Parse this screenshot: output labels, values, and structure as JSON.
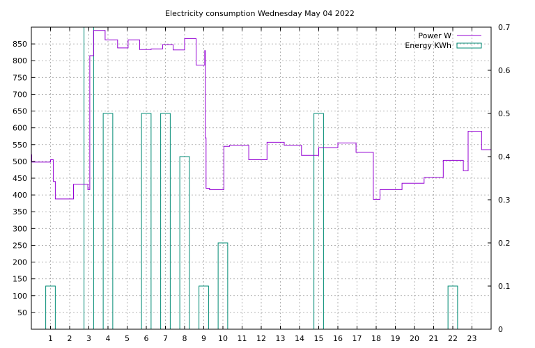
{
  "chart_data": {
    "type": "line",
    "title": "Electricity consumption Wednesday May 04 2022",
    "x_range": [
      0,
      24
    ],
    "x_ticks": [
      "1",
      "2",
      "3",
      "4",
      "5",
      "6",
      "7",
      "8",
      "9",
      "10",
      "11",
      "12",
      "13",
      "14",
      "15",
      "16",
      "17",
      "18",
      "19",
      "20",
      "21",
      "22",
      "23"
    ],
    "y_left": {
      "range": [
        0,
        900
      ],
      "ticks": [
        50,
        100,
        150,
        200,
        250,
        300,
        350,
        400,
        450,
        500,
        550,
        600,
        650,
        700,
        750,
        800,
        850
      ]
    },
    "y_right": {
      "range": [
        0,
        0.7
      ],
      "ticks": [
        "0",
        "0.1",
        "0.2",
        "0.3",
        "0.4",
        "0.5",
        "0.6",
        "0.7"
      ]
    },
    "grid": true,
    "legend_position": "top-right",
    "series": [
      {
        "name": "Power W",
        "type": "step",
        "axis": "left",
        "color": "#9400d3",
        "points": [
          [
            0.0,
            520
          ],
          [
            0.02,
            498
          ],
          [
            1.0,
            505
          ],
          [
            1.15,
            440
          ],
          [
            1.25,
            388
          ],
          [
            2.2,
            432
          ],
          [
            2.95,
            416
          ],
          [
            3.05,
            815
          ],
          [
            3.25,
            890
          ],
          [
            3.85,
            862
          ],
          [
            4.5,
            838
          ],
          [
            5.05,
            862
          ],
          [
            5.65,
            833
          ],
          [
            6.25,
            835
          ],
          [
            6.85,
            848
          ],
          [
            7.4,
            832
          ],
          [
            8.0,
            866
          ],
          [
            8.6,
            787
          ],
          [
            9.05,
            830
          ],
          [
            9.08,
            570
          ],
          [
            9.12,
            420
          ],
          [
            9.3,
            416
          ],
          [
            10.05,
            545
          ],
          [
            10.35,
            548
          ],
          [
            11.35,
            505
          ],
          [
            12.3,
            557
          ],
          [
            13.2,
            548
          ],
          [
            14.1,
            518
          ],
          [
            15.0,
            541
          ],
          [
            16.0,
            555
          ],
          [
            16.95,
            527
          ],
          [
            17.85,
            387
          ],
          [
            18.2,
            416
          ],
          [
            19.35,
            435
          ],
          [
            20.5,
            452
          ],
          [
            21.5,
            503
          ],
          [
            22.55,
            472
          ],
          [
            22.8,
            590
          ],
          [
            23.5,
            535
          ],
          [
            24.0,
            535
          ]
        ]
      },
      {
        "name": "Energy KWh",
        "type": "histogram",
        "axis": "right",
        "color": "#008b74",
        "bar_width": 0.5,
        "points": [
          [
            1,
            0.1
          ],
          [
            3,
            0.7
          ],
          [
            4,
            0.5
          ],
          [
            6,
            0.5
          ],
          [
            7,
            0.5
          ],
          [
            8,
            0.4
          ],
          [
            9,
            0.1
          ],
          [
            10,
            0.2
          ],
          [
            15,
            0.5
          ],
          [
            22,
            0.1
          ]
        ]
      }
    ]
  }
}
